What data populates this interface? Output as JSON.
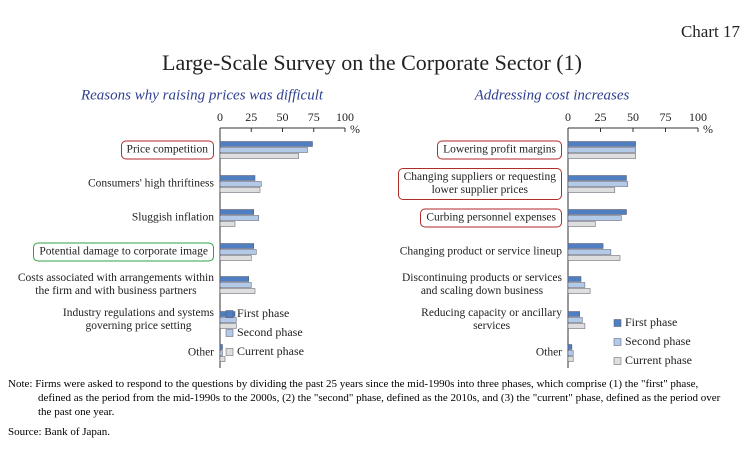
{
  "header": {
    "chart_no": "Chart 17",
    "title": "Large-Scale Survey on the Corporate Sector (1)"
  },
  "chart_data": [
    {
      "type": "barh",
      "title": "Reasons why raising prices was difficult",
      "xlabel": "%",
      "categories": [
        "Price competition",
        "Consumers' high thriftiness",
        "Sluggish inflation",
        "Potential damage to corporate image",
        "Costs associated with arrangements within\nthe firm and with business partners",
        "Industry regulations and systems\ngoverning price setting",
        "Other"
      ],
      "highlights": [
        "#b22a2a",
        null,
        null,
        "#2ca048",
        null,
        null,
        null
      ],
      "series": [
        {
          "name": "First phase",
          "color": "#4f7fc0",
          "values": [
            74,
            28,
            27,
            27,
            23,
            12,
            2
          ]
        },
        {
          "name": "Second phase",
          "color": "#b3c9e8",
          "values": [
            70,
            33,
            31,
            29,
            25,
            13,
            2
          ]
        },
        {
          "name": "Current phase",
          "color": "#dedede",
          "values": [
            63,
            32,
            12,
            25,
            28,
            13,
            4
          ]
        }
      ],
      "xlim": [
        0,
        100
      ],
      "xticks": [
        0,
        25,
        50,
        75,
        100
      ],
      "legend": "lower right"
    },
    {
      "type": "barh",
      "title": "Addressing cost increases",
      "xlabel": "%",
      "categories": [
        "Lowering profit margins",
        "Changing suppliers or requesting\nlower supplier prices",
        "Curbing personnel expenses",
        "Changing product or service lineup",
        "Discontinuing products or services\nand scaling down business",
        "Reducing capacity or ancillary\nservices",
        "Other"
      ],
      "highlights": [
        "#b22a2a",
        "#b22a2a",
        "#b22a2a",
        null,
        null,
        null,
        null
      ],
      "series": [
        {
          "name": "First phase",
          "color": "#4f7fc0",
          "values": [
            52,
            45,
            45,
            27,
            10,
            9,
            3
          ]
        },
        {
          "name": "Second phase",
          "color": "#b3c9e8",
          "values": [
            52,
            46,
            41,
            33,
            13,
            11,
            4
          ]
        },
        {
          "name": "Current phase",
          "color": "#dedede",
          "values": [
            52,
            36,
            21,
            40,
            17,
            13,
            4
          ]
        }
      ],
      "xlim": [
        0,
        100
      ],
      "xticks": [
        0,
        25,
        50,
        75,
        100
      ],
      "legend": "lower right"
    }
  ],
  "notes": {
    "note": "Note: Firms were asked to respond to the questions by dividing the past 25 years since the mid-1990s into three phases, which comprise (1) the \"first\" phase, defined as the period from the mid-1990s to the 2000s, (2) the \"second\" phase, defined as the 2010s, and (3) the \"current\" phase, defined as the period over the past one year.",
    "source": "Source: Bank of Japan."
  }
}
